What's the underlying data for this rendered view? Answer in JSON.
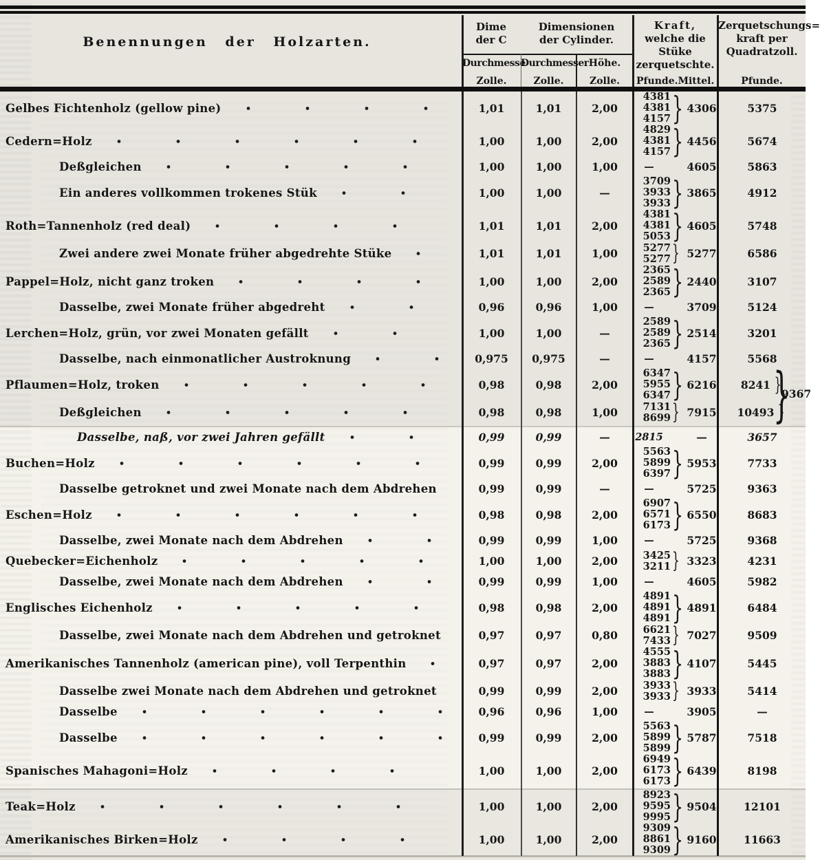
{
  "header": {
    "name_col": "Benennungen der Holzarten.",
    "dim_partial": [
      "Dime",
      "der C"
    ],
    "dim_main": [
      "Dimensionen",
      "der Cylinder."
    ],
    "sub_cols": [
      "Durchmesse",
      "Durchmesser",
      "Höhe."
    ],
    "units": [
      "Zolle.",
      "Zolle.",
      "Zolle."
    ],
    "kraft": [
      "Kraft,",
      "welche die Stüke",
      "zerquetschte."
    ],
    "kraft_sub": [
      "Pfunde.",
      "Mittel."
    ],
    "zerq": [
      "Zerquetschungs=",
      "kraft per",
      "Quadratzoll."
    ],
    "zerq_sub": "Pfunde."
  },
  "combined_value": "9367",
  "rows": [
    {
      "name": "Gelbes Fichtenholz (gellow pine)",
      "indent": 8,
      "d1": "1,01",
      "d2": "1,01",
      "h": "2,00",
      "pf": [
        "4381",
        "4381",
        "4157"
      ],
      "mittel": "4306",
      "per": "5375"
    },
    {
      "name": "Cedern=Holz",
      "indent": 8,
      "d1": "1,00",
      "d2": "1,00",
      "h": "2,00",
      "pf": [
        "4829",
        "4381",
        "4157"
      ],
      "mittel": "4456",
      "per": "5674"
    },
    {
      "name": "Deßgleichen",
      "indent": 86,
      "d1": "1,00",
      "d2": "1,00",
      "h": "1,00",
      "pf": [
        "—"
      ],
      "mittel": "4605",
      "per": "5863"
    },
    {
      "name": "Ein anderes vollkommen trokenes Stük",
      "indent": 86,
      "d1": "1,00",
      "d2": "1,00",
      "h": "—",
      "pf": [
        "3709",
        "3933",
        "3933"
      ],
      "mittel": "3865",
      "per": "4912"
    },
    {
      "name": "Roth=Tannenholz (red deal)",
      "indent": 8,
      "d1": "1,01",
      "d2": "1,01",
      "h": "2,00",
      "pf": [
        "4381",
        "4381",
        "5053"
      ],
      "mittel": "4605",
      "per": "5748"
    },
    {
      "name": "Zwei andere zwei Monate früher abgedrehte Stüke",
      "indent": 86,
      "d1": "1,01",
      "d2": "1,01",
      "h": "1,00",
      "pf": [
        "5277",
        "5277"
      ],
      "mittel": "5277",
      "per": "6586"
    },
    {
      "name": "Pappel=Holz, nicht ganz troken",
      "indent": 8,
      "d1": "1,00",
      "d2": "1,00",
      "h": "2,00",
      "pf": [
        "2365",
        "2589",
        "2365"
      ],
      "mittel": "2440",
      "per": "3107"
    },
    {
      "name": "Dasselbe, zwei Monate früher abgedreht",
      "indent": 86,
      "d1": "0,96",
      "d2": "0,96",
      "h": "1,00",
      "pf": [
        "—"
      ],
      "mittel": "3709",
      "per": "5124"
    },
    {
      "name": "Lerchen=Holz, grün, vor zwei Monaten gefällt",
      "indent": 8,
      "d1": "1,00",
      "d2": "1,00",
      "h": "—",
      "pf": [
        "2589",
        "2589",
        "2365"
      ],
      "mittel": "2514",
      "per": "3201"
    },
    {
      "name": "Dasselbe, nach einmonatlicher Austroknung",
      "indent": 86,
      "d1": "0,975",
      "d2": "0,975",
      "h": "—",
      "pf": [
        "—"
      ],
      "mittel": "4157",
      "per": "5568"
    },
    {
      "name": "Pflaumen=Holz, troken",
      "indent": 8,
      "d1": "0,98",
      "d2": "0,98",
      "h": "2,00",
      "pf": [
        "6347",
        "5955",
        "6347"
      ],
      "mittel": "6216",
      "per": "8241",
      "per_brace": true
    },
    {
      "name": "Deßgleichen",
      "indent": 86,
      "d1": "0,98",
      "d2": "0,98",
      "h": "1,00",
      "pf": [
        "7131",
        "8699"
      ],
      "mittel": "7915",
      "per": "10493",
      "per_brace": true
    },
    {
      "name": "Dasselbe, naß, vor zwei Jahren gefällt",
      "indent": 112,
      "italic": true,
      "gap": 6,
      "d1": "0,99",
      "d2": "0,99",
      "h": "—",
      "pf": [
        "2815"
      ],
      "mittel": "—",
      "per": "3657"
    },
    {
      "name": "Buchen=Holz",
      "indent": 8,
      "d1": "0,99",
      "d2": "0,99",
      "h": "2,00",
      "pf": [
        "5563",
        "5899",
        "6397"
      ],
      "mittel": "5953",
      "per": "7733"
    },
    {
      "name": "Dasselbe getroknet und zwei Monate nach dem Abdrehen",
      "indent": 86,
      "d1": "0,99",
      "d2": "0,99",
      "h": "—",
      "pf": [
        "—"
      ],
      "mittel": "5725",
      "per": "9363"
    },
    {
      "name": "Eschen=Holz",
      "indent": 8,
      "d1": "0,98",
      "d2": "0,98",
      "h": "2,00",
      "pf": [
        "6907",
        "6571",
        "6173"
      ],
      "mittel": "6550",
      "per": "8683"
    },
    {
      "name": "Dasselbe, zwei Monate nach dem Abdrehen",
      "indent": 86,
      "d1": "0,99",
      "d2": "0,99",
      "h": "1,00",
      "pf": [
        "—"
      ],
      "mittel": "5725",
      "per": "9368"
    },
    {
      "name": "Quebecker=Eichenholz",
      "indent": 8,
      "d1": "1,00",
      "d2": "1,00",
      "h": "2,00",
      "pf": [
        "3425",
        "3211"
      ],
      "mittel": "3323",
      "per": "4231"
    },
    {
      "name": "Dasselbe, zwei Monate nach dem Abdrehen",
      "indent": 86,
      "d1": "0,99",
      "d2": "0,99",
      "h": "1,00",
      "pf": [
        "—"
      ],
      "mittel": "4605",
      "per": "5982"
    },
    {
      "name": "Englisches Eichenholz",
      "indent": 8,
      "d1": "0,98",
      "d2": "0,98",
      "h": "2,00",
      "pf": [
        "4891",
        "4891",
        "4891"
      ],
      "mittel": "4891",
      "per": "6484"
    },
    {
      "name": "Dasselbe, zwei Monate nach dem Abdrehen und getroknet",
      "indent": 86,
      "d1": "0,97",
      "d2": "0,97",
      "h": "0,80",
      "pf": [
        "6621",
        "7433"
      ],
      "mittel": "7027",
      "per": "9509"
    },
    {
      "name": "Amerikanisches Tannenholz (american pine), voll Terpenthin",
      "indent": 8,
      "d1": "0,97",
      "d2": "0,97",
      "h": "2,00",
      "pf": [
        "4555",
        "3883",
        "3883"
      ],
      "mittel": "4107",
      "per": "5445"
    },
    {
      "name": "Dasselbe zwei Monate nach dem Abdrehen und getroknet",
      "indent": 86,
      "d1": "0,99",
      "d2": "0,99",
      "h": "2,00",
      "pf": [
        "3933",
        "3933"
      ],
      "mittel": "3933",
      "per": "5414"
    },
    {
      "name": "Dasselbe",
      "indent": 86,
      "d1": "0,96",
      "d2": "0,96",
      "h": "1,00",
      "pf": [
        "—"
      ],
      "mittel": "3905",
      "per": "—"
    },
    {
      "name": "Dasselbe",
      "indent": 86,
      "d1": "0,99",
      "d2": "0,99",
      "h": "2,00",
      "pf": [
        "5563",
        "5899",
        "5899"
      ],
      "mittel": "5787",
      "per": "7518"
    },
    {
      "name": "Spanisches Mahagoni=Holz",
      "indent": 8,
      "d1": "1,00",
      "d2": "1,00",
      "h": "2,00",
      "pf": [
        "6949",
        "6173",
        "6173"
      ],
      "mittel": "6439",
      "per": "8198"
    },
    {
      "name": "Teak=Holz",
      "indent": 8,
      "gap": 4,
      "d1": "1,00",
      "d2": "1,00",
      "h": "2,00",
      "pf": [
        "8923",
        "9595",
        "9995"
      ],
      "mittel": "9504",
      "per": "12101"
    },
    {
      "name": "Amerikanisches Birken=Holz",
      "indent": 8,
      "d1": "1,00",
      "d2": "1,00",
      "h": "2,00",
      "pf": [
        "9309",
        "8861",
        "9309"
      ],
      "mittel": "9160",
      "per": "11663"
    }
  ]
}
